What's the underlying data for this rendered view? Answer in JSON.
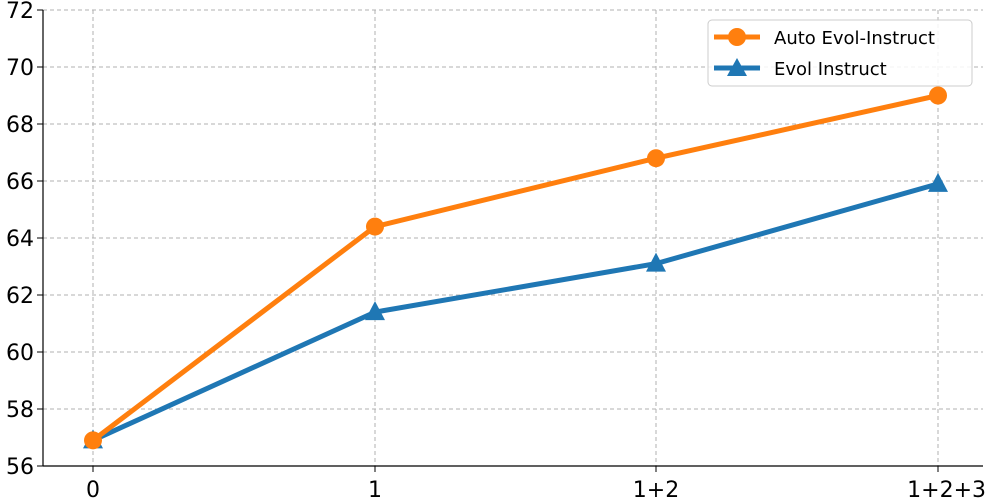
{
  "chart_data": {
    "type": "line",
    "title": "",
    "xlabel": "",
    "ylabel": "",
    "categories": [
      "0",
      "1",
      "1+2",
      "1+2+3"
    ],
    "ylim": [
      56,
      72
    ],
    "yticks": [
      56,
      58,
      60,
      62,
      64,
      66,
      68,
      70,
      72
    ],
    "grid": true,
    "legend_position": "top-right",
    "series": [
      {
        "name": "Auto Evol-Instruct",
        "values": [
          56.9,
          64.4,
          66.8,
          69.0
        ],
        "color": "#ff7f0e",
        "marker": "circle"
      },
      {
        "name": "Evol Instruct",
        "values": [
          56.9,
          61.4,
          63.1,
          65.9
        ],
        "color": "#1f77b4",
        "marker": "triangle"
      }
    ]
  }
}
